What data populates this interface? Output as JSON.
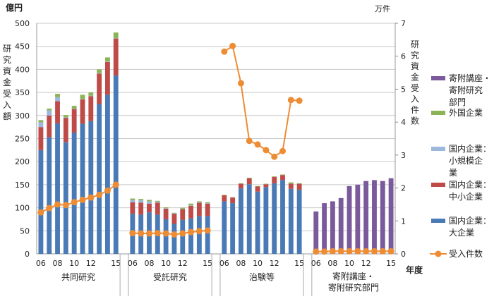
{
  "chart_data": {
    "type": "bar",
    "subtype": "stacked bar with line (dual axis)",
    "left_axis": {
      "unit": "億円",
      "label": "研究資金受入額",
      "ylim": [
        0,
        500
      ],
      "ticks": [
        0,
        50,
        100,
        150,
        200,
        250,
        300,
        350,
        400,
        450,
        500
      ]
    },
    "right_axis": {
      "unit": "万件",
      "label": "研究資金受入件数",
      "ylim": [
        0,
        7
      ],
      "ticks": [
        0,
        1,
        2,
        3,
        4,
        5,
        6,
        7
      ]
    },
    "xlabel": "年度",
    "x": [
      "06",
      "07",
      "08",
      "09",
      "10",
      "11",
      "12",
      "13",
      "14",
      "15"
    ],
    "x_tick_labels": [
      "06",
      "08",
      "10",
      "12",
      "15"
    ],
    "grid": true,
    "legend_position": "right",
    "legend": [
      {
        "name": "寄附講座・寄附研究部門",
        "lines": [
          "寄附講座・",
          "寄附研究",
          "部門"
        ],
        "color": "#7B5A9C",
        "kind": "bar"
      },
      {
        "name": "外国企業",
        "lines": [
          "外国企業"
        ],
        "color": "#8CB454",
        "kind": "bar"
      },
      {
        "name": "国内企業：小規模企業",
        "lines": [
          "国内企業：",
          "小規模企",
          "業"
        ],
        "color": "#9DB8DD",
        "kind": "bar"
      },
      {
        "name": "国内企業：中小企業",
        "lines": [
          "国内企業：",
          "中小企業"
        ],
        "color": "#BE4B48",
        "kind": "bar"
      },
      {
        "name": "国内企業：大企業",
        "lines": [
          "国内企業：",
          "大企業"
        ],
        "color": "#4A7AB5",
        "kind": "bar"
      },
      {
        "name": "受入件数",
        "lines": [
          "受入件数"
        ],
        "color": "#EE8C34",
        "kind": "line"
      }
    ],
    "groups": [
      {
        "name": "共同研究",
        "label_lines": [
          "共同研究"
        ],
        "series": {
          "国内企業：大企業": [
            225,
            253,
            283,
            242,
            263,
            282,
            288,
            325,
            345,
            387
          ],
          "国内企業：中小企業": [
            50,
            47,
            48,
            53,
            51,
            53,
            54,
            66,
            71,
            80
          ],
          "国内企業：小規模企業": [
            10,
            11,
            9,
            1,
            1,
            1,
            1,
            1,
            1,
            1
          ],
          "外国企業": [
            5,
            4,
            7,
            5,
            6,
            9,
            7,
            8,
            9,
            12
          ],
          "寄附講座・寄附研究部門": [
            0,
            0,
            0,
            0,
            0,
            0,
            0,
            0,
            0,
            0
          ]
        },
        "受入件数": [
          1.26,
          1.39,
          1.5,
          1.48,
          1.57,
          1.64,
          1.71,
          1.79,
          1.92,
          2.1
        ]
      },
      {
        "name": "受託研究",
        "label_lines": [
          "受託研究"
        ],
        "series": {
          "国内企業：大企業": [
            87,
            85,
            90,
            85,
            75,
            65,
            74,
            77,
            82,
            82
          ],
          "国内企業：中小企業": [
            25,
            26,
            19,
            26,
            23,
            22,
            23,
            27,
            29,
            27
          ],
          "国内企業：小規模企業": [
            5,
            5,
            5,
            2,
            1,
            1,
            1,
            1,
            1,
            1
          ],
          "外国企業": [
            3,
            3,
            3,
            2,
            2,
            1,
            2,
            4,
            2,
            2
          ],
          "寄附講座・寄附研究部門": [
            0,
            0,
            0,
            0,
            0,
            0,
            0,
            0,
            0,
            0
          ]
        },
        "受入件数": [
          0.63,
          0.62,
          0.62,
          0.63,
          0.62,
          0.59,
          0.62,
          0.66,
          0.69,
          0.71
        ]
      },
      {
        "name": "治験等",
        "label_lines": [
          "治験等"
        ],
        "series": {
          "国内企業：大企業": [
            114,
            110,
            142,
            151,
            135,
            145,
            153,
            160,
            141,
            139
          ],
          "国内企業：中小企業": [
            13,
            12,
            10,
            13,
            11,
            6,
            14,
            11,
            11,
            13
          ],
          "国内企業：小規模企業": [
            0,
            0,
            0,
            0,
            0,
            0,
            0,
            0,
            0,
            0
          ],
          "外国企業": [
            1,
            1,
            1,
            1,
            1,
            1,
            1,
            1,
            3,
            1
          ],
          "寄附講座・寄附研究部門": [
            0,
            0,
            0,
            0,
            0,
            0,
            0,
            0,
            0,
            0
          ]
        },
        "受入件数": [
          6.14,
          6.31,
          5.18,
          3.43,
          3.32,
          3.15,
          2.95,
          3.12,
          4.67,
          4.65
        ]
      },
      {
        "name": "寄附講座・寄附研究部門",
        "label_lines": [
          "寄附講座・",
          "寄附研究部門"
        ],
        "series": {
          "国内企業：大企業": [
            0,
            0,
            0,
            0,
            0,
            0,
            0,
            0,
            0,
            0
          ],
          "国内企業：中小企業": [
            0,
            0,
            0,
            0,
            0,
            0,
            0,
            0,
            0,
            0
          ],
          "国内企業：小規模企業": [
            0,
            0,
            0,
            0,
            0,
            0,
            0,
            0,
            0,
            0
          ],
          "外国企業": [
            0,
            0,
            0,
            0,
            0,
            0,
            0,
            0,
            0,
            0
          ],
          "寄附講座・寄附研究部門": [
            92,
            110,
            114,
            121,
            147,
            150,
            158,
            160,
            158,
            164
          ]
        },
        "受入件数": [
          0.07,
          0.07,
          0.08,
          0.08,
          0.08,
          0.08,
          0.08,
          0.08,
          0.08,
          0.08
        ]
      }
    ]
  }
}
